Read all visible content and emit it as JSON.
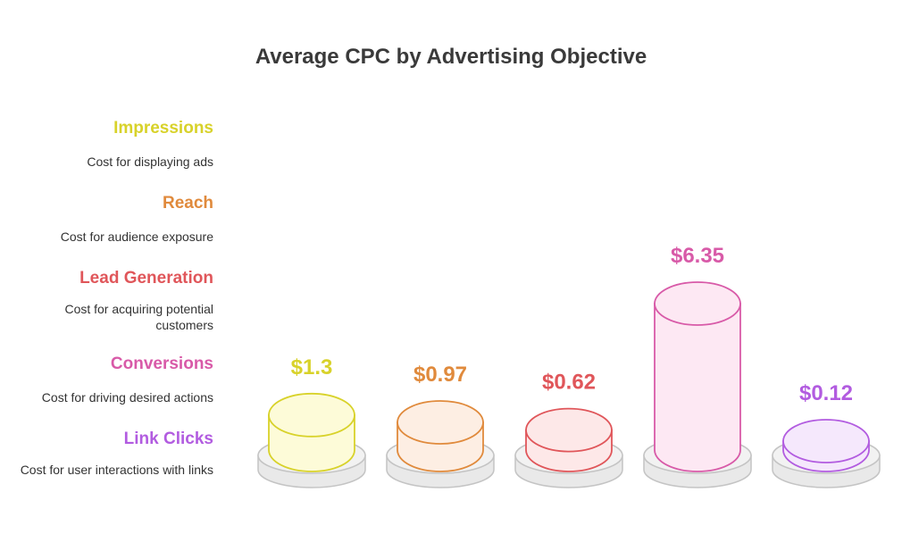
{
  "chart_data": {
    "type": "bar",
    "title": "Average CPC by Advertising Objective",
    "categories": [
      "Impressions",
      "Reach",
      "Lead Generation",
      "Conversions",
      "Link Clicks"
    ],
    "values": [
      1.3,
      0.97,
      0.62,
      6.35,
      0.12
    ],
    "value_labels": [
      "$1.3",
      "$0.97",
      "$0.62",
      "$6.35",
      "$0.12"
    ],
    "descriptions": [
      "Cost for displaying ads",
      "Cost for audience exposure",
      "Cost for acquiring potential customers",
      "Cost for driving desired actions",
      "Cost for user interactions with links"
    ],
    "colors": {
      "stroke": [
        "#d8d22a",
        "#e08a3c",
        "#e0565a",
        "#d85aa8",
        "#b25ce0"
      ],
      "fill": [
        "#fdfbd8",
        "#fdeee3",
        "#fde8e8",
        "#fde8f3",
        "#f5e8fc"
      ]
    },
    "legend_position": "left"
  }
}
